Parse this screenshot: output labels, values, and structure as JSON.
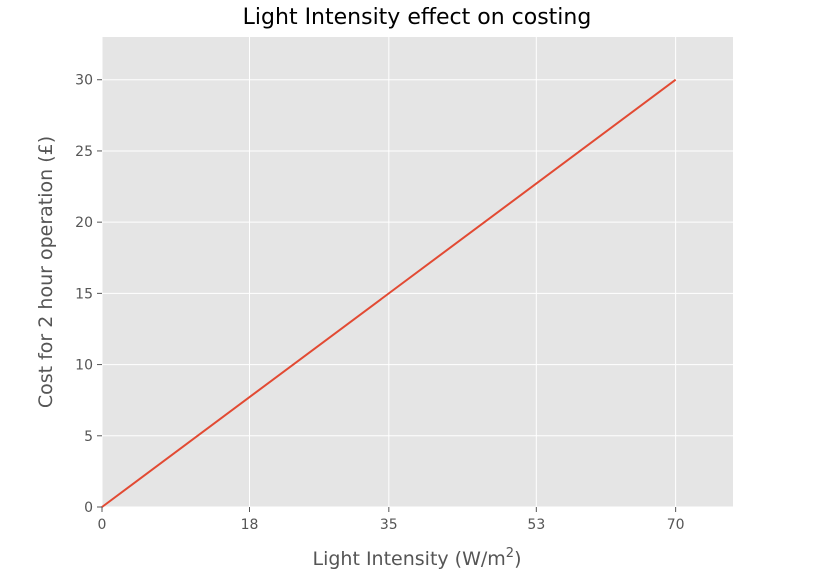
{
  "chart_data": {
    "type": "line",
    "title": "Light Intensity effect on costing",
    "xlabel": "Light Intensity (W/m",
    "xlabel_sup": "2",
    "xlabel_close": ")",
    "ylabel": "Cost for 2 hour operation (£)",
    "x_ticks": [
      0,
      18,
      35,
      53,
      70
    ],
    "x_tick_labels": [
      "0",
      "18",
      "35",
      "53",
      "70"
    ],
    "y_ticks": [
      0,
      5,
      10,
      15,
      20,
      25,
      30
    ],
    "y_tick_labels": [
      "0",
      "5",
      "10",
      "15",
      "20",
      "25",
      "30"
    ],
    "xlim": [
      0,
      77
    ],
    "ylim": [
      0,
      33
    ],
    "grid": true,
    "series": [
      {
        "x": [
          0,
          70
        ],
        "y": [
          0,
          30
        ],
        "color": "#e24a33"
      }
    ],
    "colors": {
      "plot_background": "#e5e5e5",
      "grid": "#ffffff",
      "line": "#e24a33"
    }
  }
}
